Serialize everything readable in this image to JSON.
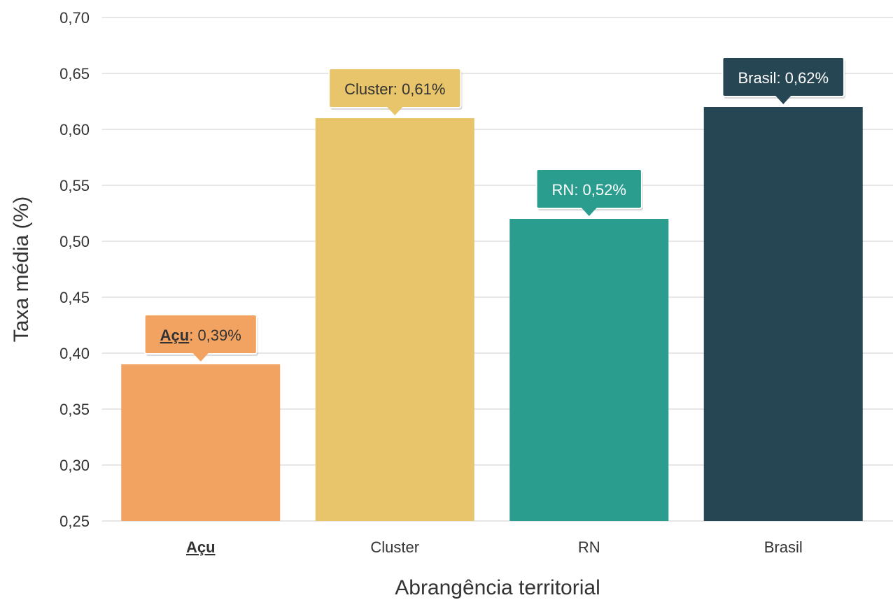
{
  "chart_data": {
    "type": "bar",
    "categories": [
      "Açu",
      "Cluster",
      "RN",
      "Brasil"
    ],
    "values": [
      0.39,
      0.61,
      0.52,
      0.62
    ],
    "colors": [
      "#f2a361",
      "#e8c46a",
      "#2a9d8f",
      "#264653"
    ],
    "tooltip_text_colors": [
      "#333333",
      "#333333",
      "#ffffff",
      "#ffffff"
    ],
    "highlighted_category": "Açu",
    "tooltips": [
      {
        "label": "Açu",
        "value": "0,39%"
      },
      {
        "label": "Cluster",
        "value": "0,61%"
      },
      {
        "label": "RN",
        "value": "0,52%"
      },
      {
        "label": "Brasil",
        "value": "0,62%"
      }
    ],
    "xlabel": "Abrangência territorial",
    "ylabel": "Taxa média (%)",
    "ylim": [
      0.25,
      0.7
    ],
    "yticks": [
      "0,25",
      "0,30",
      "0,35",
      "0,40",
      "0,45",
      "0,50",
      "0,55",
      "0,60",
      "0,65",
      "0,70"
    ],
    "grid": true,
    "legend": "none"
  }
}
